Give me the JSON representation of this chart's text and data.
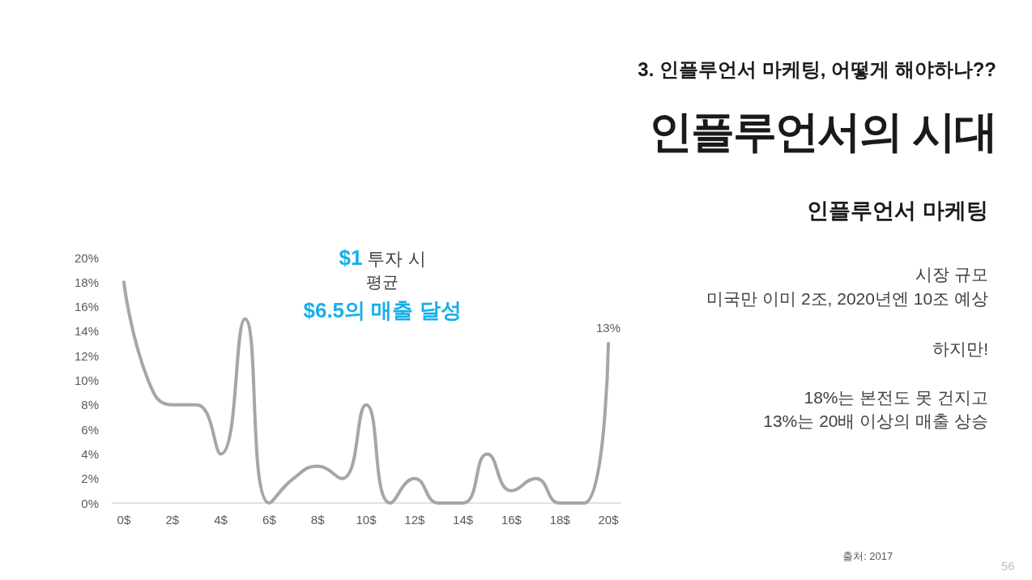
{
  "chart_data": {
    "type": "line",
    "title": "인플루언서의 시대",
    "subtitle": "인플루언서 마케팅",
    "annotations": [
      "3. 인플루언서 마케팅, 어떻게 해야하나??",
      "$1 투자 시",
      "평균",
      "$6.5의 매출 달성",
      "시장 규모",
      "미국만 이미 2조, 2020년엔 10조 예상",
      "하지만!",
      "18%는 본전도 못 건지고",
      "13%는 20배 이상의 매출 상승",
      "출처: 2017",
      "56"
    ],
    "categories": [
      "0$",
      null,
      "2$",
      null,
      "4$",
      null,
      "6$",
      null,
      "8$",
      null,
      "10$",
      null,
      "12$",
      null,
      "14$",
      null,
      "16$",
      null,
      "18$",
      null,
      "20$"
    ],
    "series": [
      {
        "color": "#a6a6a6",
        "values": [
          18,
          10,
          8,
          8,
          4,
          15,
          0,
          2,
          3,
          2,
          8,
          0,
          2,
          0,
          0,
          4,
          1,
          2,
          0,
          0,
          13
        ],
        "value_labels": [
          null,
          null,
          null,
          null,
          null,
          null,
          null,
          null,
          null,
          null,
          null,
          null,
          null,
          null,
          null,
          null,
          null,
          null,
          null,
          null,
          "13%"
        ]
      }
    ],
    "ylim": [
      0,
      20
    ],
    "yticks": [
      {
        "value": 0,
        "label": "0%"
      },
      {
        "value": 2,
        "label": "2%"
      },
      {
        "value": 4,
        "label": "4%"
      },
      {
        "value": 6,
        "label": "6%"
      },
      {
        "value": 8,
        "label": "8%"
      },
      {
        "value": 10,
        "label": "10%"
      },
      {
        "value": 12,
        "label": "12%"
      },
      {
        "value": 14,
        "label": "14%"
      },
      {
        "value": 16,
        "label": "16%"
      },
      {
        "value": 18,
        "label": "18%"
      },
      {
        "value": 20,
        "label": "20%"
      }
    ],
    "grid": false,
    "marker": "none",
    "line_style": "solid"
  }
}
